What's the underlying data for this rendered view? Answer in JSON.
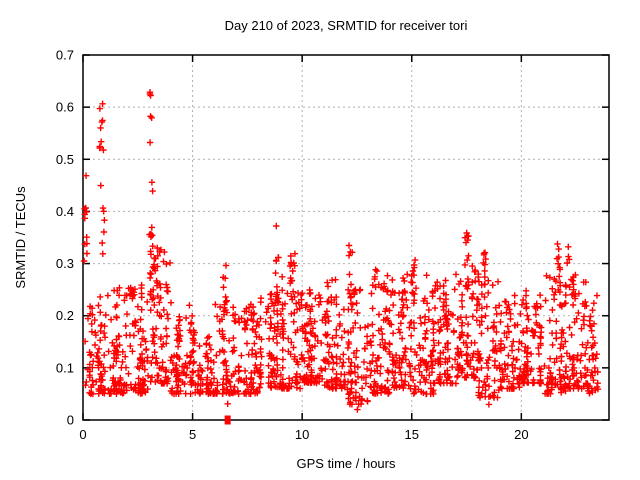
{
  "chart_data": {
    "type": "scatter",
    "title": "Day 210 of 2023, SRMTID for receiver tori",
    "xlabel": "GPS time / hours",
    "ylabel": "SRMTID / TECUs",
    "xlim": [
      0,
      24
    ],
    "ylim": [
      0,
      0.7
    ],
    "xticks": [
      0,
      5,
      10,
      15,
      20
    ],
    "yticks": [
      0,
      0.1,
      0.2,
      0.3,
      0.4,
      0.5,
      0.6,
      0.7
    ],
    "grid": {
      "on": true,
      "color": "#b0b0b0",
      "dash": "2 3"
    },
    "axis_color": "#000000",
    "background_color": "#ffffff",
    "legend": "none",
    "marker": {
      "shape": "plus",
      "color": "#ff0000",
      "size": 7
    },
    "series_name": "SRMTID",
    "seed": 210,
    "cloud_bins": [
      [
        0.03,
        1.0,
        0.05,
        0.24,
        70
      ],
      [
        1.0,
        2.0,
        0.05,
        0.26,
        75
      ],
      [
        2.0,
        3.0,
        0.05,
        0.26,
        75
      ],
      [
        3.0,
        4.0,
        0.07,
        0.33,
        85
      ],
      [
        4.0,
        5.0,
        0.05,
        0.22,
        70
      ],
      [
        5.0,
        6.0,
        0.05,
        0.18,
        70
      ],
      [
        6.0,
        7.0,
        0.05,
        0.23,
        70
      ],
      [
        7.0,
        8.0,
        0.05,
        0.22,
        70
      ],
      [
        8.0,
        9.0,
        0.06,
        0.26,
        75
      ],
      [
        9.0,
        10.0,
        0.06,
        0.28,
        80
      ],
      [
        10.0,
        11.0,
        0.07,
        0.25,
        75
      ],
      [
        11.0,
        12.0,
        0.06,
        0.27,
        75
      ],
      [
        12.0,
        13.0,
        0.03,
        0.26,
        75
      ],
      [
        13.0,
        14.0,
        0.05,
        0.29,
        75
      ],
      [
        14.0,
        15.0,
        0.06,
        0.28,
        75
      ],
      [
        15.0,
        16.0,
        0.05,
        0.28,
        75
      ],
      [
        16.0,
        17.0,
        0.07,
        0.27,
        75
      ],
      [
        17.0,
        18.0,
        0.08,
        0.3,
        80
      ],
      [
        18.0,
        19.0,
        0.04,
        0.28,
        75
      ],
      [
        19.0,
        20.0,
        0.06,
        0.24,
        70
      ],
      [
        20.0,
        21.0,
        0.07,
        0.25,
        75
      ],
      [
        21.0,
        22.0,
        0.05,
        0.28,
        75
      ],
      [
        22.0,
        23.0,
        0.06,
        0.28,
        75
      ],
      [
        23.0,
        23.5,
        0.05,
        0.24,
        40
      ]
    ],
    "spikes": [
      [
        0.12,
        0.06,
        0.3,
        0.48,
        10
      ],
      [
        0.85,
        0.1,
        0.5,
        0.64,
        9
      ],
      [
        0.88,
        0.1,
        0.28,
        0.46,
        7
      ],
      [
        3.15,
        0.12,
        0.33,
        0.63,
        14
      ],
      [
        3.18,
        0.18,
        0.2,
        0.34,
        12
      ],
      [
        2.35,
        0.1,
        0.18,
        0.26,
        8
      ],
      [
        4.35,
        0.12,
        0.15,
        0.22,
        8
      ],
      [
        6.45,
        0.08,
        0.2,
        0.31,
        10
      ],
      [
        7.75,
        0.1,
        0.15,
        0.23,
        8
      ],
      [
        8.85,
        0.07,
        0.22,
        0.37,
        12
      ],
      [
        9.55,
        0.12,
        0.2,
        0.33,
        14
      ],
      [
        10.4,
        0.1,
        0.16,
        0.25,
        8
      ],
      [
        11.15,
        0.1,
        0.18,
        0.28,
        8
      ],
      [
        12.2,
        0.1,
        0.22,
        0.34,
        10
      ],
      [
        13.8,
        0.12,
        0.18,
        0.3,
        10
      ],
      [
        14.6,
        0.1,
        0.18,
        0.28,
        8
      ],
      [
        15.1,
        0.08,
        0.22,
        0.31,
        10
      ],
      [
        16.5,
        0.1,
        0.18,
        0.27,
        8
      ],
      [
        17.5,
        0.1,
        0.25,
        0.37,
        14
      ],
      [
        18.3,
        0.08,
        0.22,
        0.33,
        10
      ],
      [
        19.4,
        0.1,
        0.15,
        0.24,
        7
      ],
      [
        20.6,
        0.1,
        0.16,
        0.25,
        7
      ],
      [
        21.7,
        0.08,
        0.24,
        0.34,
        12
      ],
      [
        22.4,
        0.1,
        0.18,
        0.28,
        8
      ],
      [
        22.15,
        0.06,
        0.3,
        0.36,
        4
      ]
    ],
    "extra_points": [
      [
        6.6,
        0.031
      ],
      [
        12.52,
        0.02
      ],
      [
        12.62,
        0.045
      ],
      [
        18.52,
        0.03
      ],
      [
        23.35,
        0.1
      ],
      [
        8.82,
        0.372
      ],
      [
        0.05,
        0.305
      ]
    ],
    "zero_square_point": {
      "x": 6.6,
      "y": 0
    }
  }
}
